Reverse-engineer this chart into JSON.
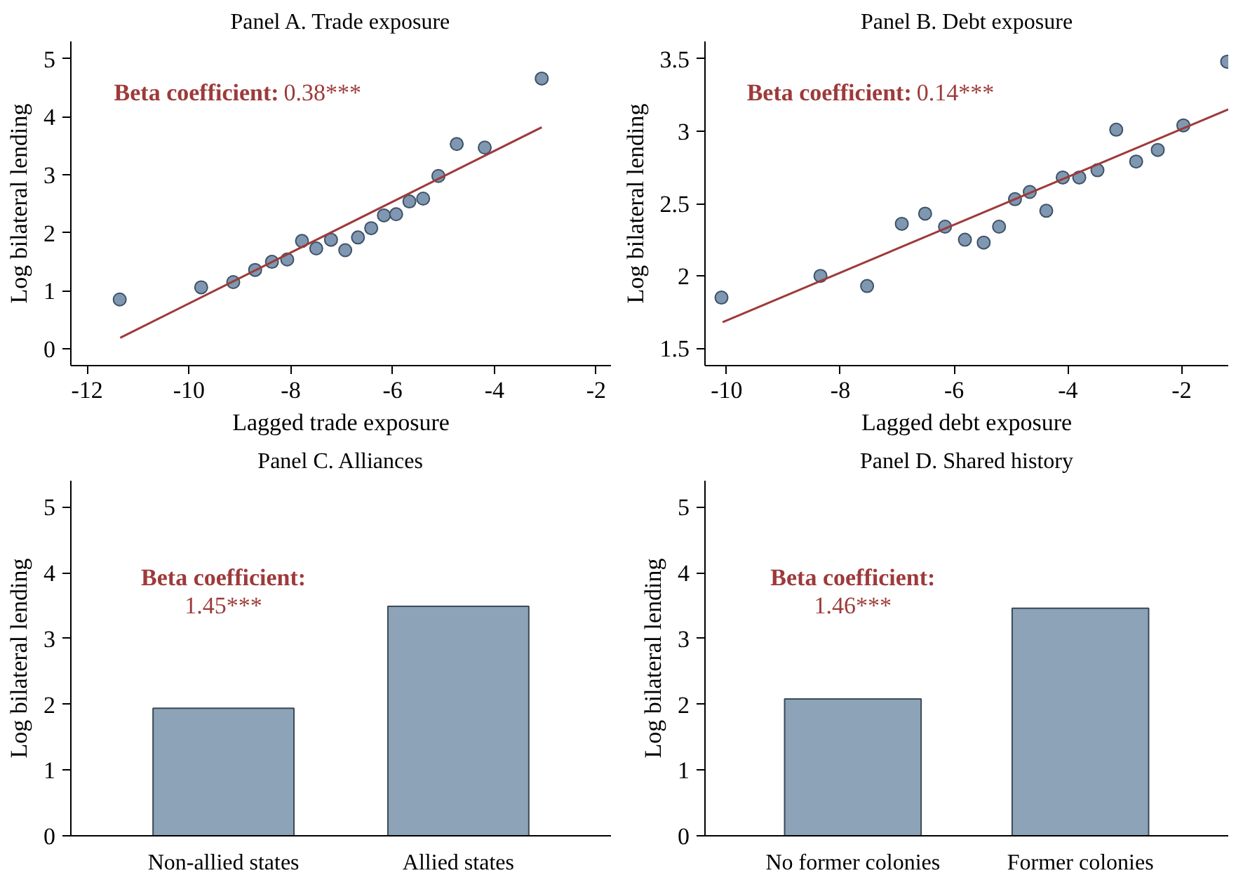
{
  "chart_data": [
    {
      "type": "scatter",
      "title": "Panel A. Trade exposure",
      "xlabel": "Lagged trade exposure",
      "ylabel": "Log bilateral lending",
      "xlim": [
        -12.32,
        -1.71
      ],
      "ylim": [
        -0.29,
        5.3
      ],
      "xticks": [
        -12,
        -10,
        -8,
        -6,
        -4,
        -2
      ],
      "yticks": [
        0,
        1,
        2,
        3,
        4,
        5
      ],
      "grid": false,
      "annotations": [
        "Beta coefficient: 0.38***"
      ],
      "series": [
        {
          "type": "scatter",
          "marker": "circle",
          "color": "#7f97b0",
          "x": [
            -11.36,
            -9.76,
            -9.13,
            -8.7,
            -8.37,
            -8.07,
            -7.78,
            -7.5,
            -7.21,
            -6.93,
            -6.68,
            -6.42,
            -6.17,
            -5.93,
            -5.67,
            -5.4,
            -5.1,
            -4.74,
            -4.19,
            -3.07
          ],
          "values": [
            0.85,
            1.06,
            1.15,
            1.36,
            1.5,
            1.54,
            1.86,
            1.73,
            1.88,
            1.7,
            1.92,
            2.08,
            2.3,
            2.32,
            2.54,
            2.59,
            2.98,
            3.53,
            3.47,
            4.66
          ]
        },
        {
          "type": "line",
          "color": "#9e3a3a",
          "x": [
            -11.35,
            -3.07
          ],
          "values": [
            0.19,
            3.82
          ]
        }
      ]
    },
    {
      "type": "scatter",
      "title": "Panel B. Debt exposure",
      "xlabel": "Lagged debt exposure",
      "ylabel": "Log bilateral lending",
      "xlim": [
        -10.38,
        -1.18
      ],
      "ylim": [
        1.38,
        3.62
      ],
      "xticks": [
        -10,
        -8,
        -6,
        -4,
        -2
      ],
      "yticks": [
        1.5,
        2,
        2.5,
        3,
        3.5
      ],
      "grid": false,
      "annotations": [
        "Beta coefficient: 0.14***"
      ],
      "series": [
        {
          "type": "scatter",
          "marker": "circle",
          "color": "#7f97b0",
          "x": [
            -10.09,
            -8.35,
            -7.53,
            -6.92,
            -6.51,
            -6.16,
            -5.81,
            -5.48,
            -5.21,
            -4.93,
            -4.67,
            -4.38,
            -4.09,
            -3.8,
            -3.48,
            -3.15,
            -2.8,
            -2.42,
            -1.97,
            -1.2
          ],
          "values": [
            1.85,
            2.0,
            1.93,
            2.36,
            2.43,
            2.34,
            2.25,
            2.23,
            2.34,
            2.53,
            2.58,
            2.45,
            2.68,
            2.68,
            2.73,
            3.01,
            2.79,
            2.87,
            3.04,
            3.48
          ]
        },
        {
          "type": "line",
          "color": "#9e3a3a",
          "x": [
            -10.07,
            -1.18
          ],
          "values": [
            1.68,
            3.15
          ]
        }
      ]
    },
    {
      "type": "bar",
      "title": "Panel C. Alliances",
      "ylabel": "Log bilateral lending",
      "categories": [
        "Non-allied states",
        "Allied states"
      ],
      "values": [
        1.94,
        3.49
      ],
      "color": "#8ca3b8",
      "ylim": [
        0,
        5.4
      ],
      "yticks": [
        0,
        1,
        2,
        3,
        4,
        5
      ],
      "grid": false,
      "annotations": [
        "Beta coefficient: 1.45***"
      ]
    },
    {
      "type": "bar",
      "title": "Panel D. Shared history",
      "ylabel": "Log bilateral lending",
      "categories": [
        "No former colonies",
        "Former colonies"
      ],
      "values": [
        2.08,
        3.46
      ],
      "color": "#8ca3b8",
      "ylim": [
        0,
        5.4
      ],
      "yticks": [
        0,
        1,
        2,
        3,
        4,
        5
      ],
      "grid": false,
      "annotations": [
        "Beta coefficient: 1.46***"
      ]
    }
  ]
}
